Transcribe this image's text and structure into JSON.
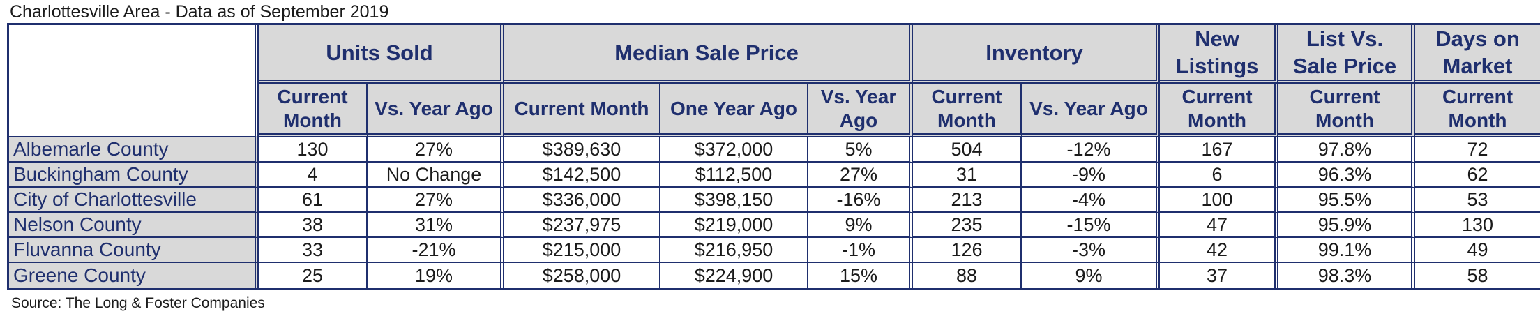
{
  "title": "Charlottesville Area - Data as of September 2019",
  "source": "Source: The Long & Foster Companies",
  "groups": {
    "units_sold": "Units Sold",
    "median_sale_price": "Median Sale Price",
    "inventory": "Inventory",
    "new_listings": [
      "New",
      "Listings"
    ],
    "list_vs_sale": [
      "List Vs.",
      "Sale Price"
    ],
    "days_on_market": [
      "Days on",
      "Market"
    ]
  },
  "subheaders": {
    "units_current": [
      "Current",
      "Month"
    ],
    "units_vs_year": "Vs. Year Ago",
    "price_current": "Current Month",
    "price_year_ago": "One Year Ago",
    "price_vs_year": [
      "Vs. Year",
      "Ago"
    ],
    "inv_current": [
      "Current",
      "Month"
    ],
    "inv_vs_year": "Vs. Year Ago",
    "new_current": [
      "Current",
      "Month"
    ],
    "list_current": [
      "Current",
      "Month"
    ],
    "days_current": [
      "Current",
      "Month"
    ]
  },
  "rows": [
    {
      "county": "Albemarle County",
      "units": "130",
      "units_vs": "27%",
      "price": "$389,630",
      "price_ya": "$372,000",
      "price_vs": "5%",
      "inv": "504",
      "inv_vs": "-12%",
      "new": "167",
      "list": "97.8%",
      "days": "72"
    },
    {
      "county": "Buckingham County",
      "units": "4",
      "units_vs": "No Change",
      "price": "$142,500",
      "price_ya": "$112,500",
      "price_vs": "27%",
      "inv": "31",
      "inv_vs": "-9%",
      "new": "6",
      "list": "96.3%",
      "days": "62"
    },
    {
      "county": "City of Charlottesville",
      "units": "61",
      "units_vs": "27%",
      "price": "$336,000",
      "price_ya": "$398,150",
      "price_vs": "-16%",
      "inv": "213",
      "inv_vs": "-4%",
      "new": "100",
      "list": "95.5%",
      "days": "53"
    },
    {
      "county": "Nelson County",
      "units": "38",
      "units_vs": "31%",
      "price": "$237,975",
      "price_ya": "$219,000",
      "price_vs": "9%",
      "inv": "235",
      "inv_vs": "-15%",
      "new": "47",
      "list": "95.9%",
      "days": "130"
    },
    {
      "county": "Fluvanna County",
      "units": "33",
      "units_vs": "-21%",
      "price": "$215,000",
      "price_ya": "$216,950",
      "price_vs": "-1%",
      "inv": "126",
      "inv_vs": "-3%",
      "new": "42",
      "list": "99.1%",
      "days": "49"
    },
    {
      "county": "Greene County",
      "units": "25",
      "units_vs": "19%",
      "price": "$258,000",
      "price_ya": "$224,900",
      "price_vs": "15%",
      "inv": "88",
      "inv_vs": "9%",
      "new": "37",
      "list": "98.3%",
      "days": "58"
    }
  ]
}
